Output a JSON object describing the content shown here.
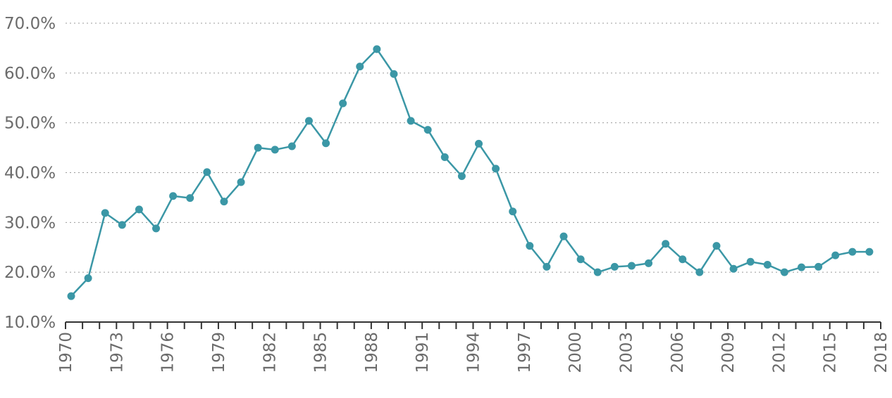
{
  "chart_data": {
    "type": "line",
    "title": "",
    "xlabel": "",
    "ylabel": "",
    "x": [
      1970,
      1971,
      1972,
      1973,
      1974,
      1975,
      1976,
      1977,
      1978,
      1979,
      1980,
      1981,
      1982,
      1983,
      1984,
      1985,
      1986,
      1987,
      1988,
      1989,
      1990,
      1991,
      1992,
      1993,
      1994,
      1995,
      1996,
      1997,
      1998,
      1999,
      2000,
      2001,
      2002,
      2003,
      2004,
      2005,
      2006,
      2007,
      2008,
      2009,
      2010,
      2011,
      2012,
      2013,
      2014,
      2015,
      2016,
      2017
    ],
    "series": [
      {
        "values": [
          15.2,
          18.8,
          31.9,
          29.5,
          32.6,
          28.8,
          35.3,
          34.9,
          40.1,
          34.2,
          38.1,
          45.0,
          44.6,
          45.3,
          50.4,
          45.9,
          53.9,
          61.3,
          64.8,
          59.8,
          50.4,
          48.6,
          43.1,
          39.3,
          45.8,
          40.8,
          32.2,
          25.3,
          21.1,
          27.2,
          22.6,
          20.0,
          21.1,
          21.3,
          21.8,
          25.7,
          22.6,
          20.0,
          25.3,
          20.7,
          22.1,
          21.5,
          20.0,
          21.0,
          21.1,
          23.4,
          24.1,
          24.1
        ],
        "color": "#3b97a6"
      }
    ],
    "ylim": [
      10,
      70
    ],
    "xlim": [
      1970,
      2018
    ],
    "yticks": [
      {
        "value": 10,
        "label": "10.0%"
      },
      {
        "value": 20,
        "label": "20.0%"
      },
      {
        "value": 30,
        "label": "30.0%"
      },
      {
        "value": 40,
        "label": "40.0%"
      },
      {
        "value": 50,
        "label": "50.0%"
      },
      {
        "value": 60,
        "label": "60.0%"
      },
      {
        "value": 70,
        "label": "70.0%"
      }
    ],
    "xtick_labels": [
      {
        "value": 1970,
        "label": "1970"
      },
      {
        "value": 1973,
        "label": "1973"
      },
      {
        "value": 1976,
        "label": "1976"
      },
      {
        "value": 1979,
        "label": "1979"
      },
      {
        "value": 1982,
        "label": "1982"
      },
      {
        "value": 1985,
        "label": "1985"
      },
      {
        "value": 1988,
        "label": "1988"
      },
      {
        "value": 1991,
        "label": "1991"
      },
      {
        "value": 1994,
        "label": "1994"
      },
      {
        "value": 1997,
        "label": "1997"
      },
      {
        "value": 2000,
        "label": "2000"
      },
      {
        "value": 2003,
        "label": "2003"
      },
      {
        "value": 2006,
        "label": "2006"
      },
      {
        "value": 2009,
        "label": "2009"
      },
      {
        "value": 2012,
        "label": "2012"
      },
      {
        "value": 2015,
        "label": "2015"
      },
      {
        "value": 2018,
        "label": "2018"
      }
    ],
    "grid": true,
    "legend": "none"
  }
}
